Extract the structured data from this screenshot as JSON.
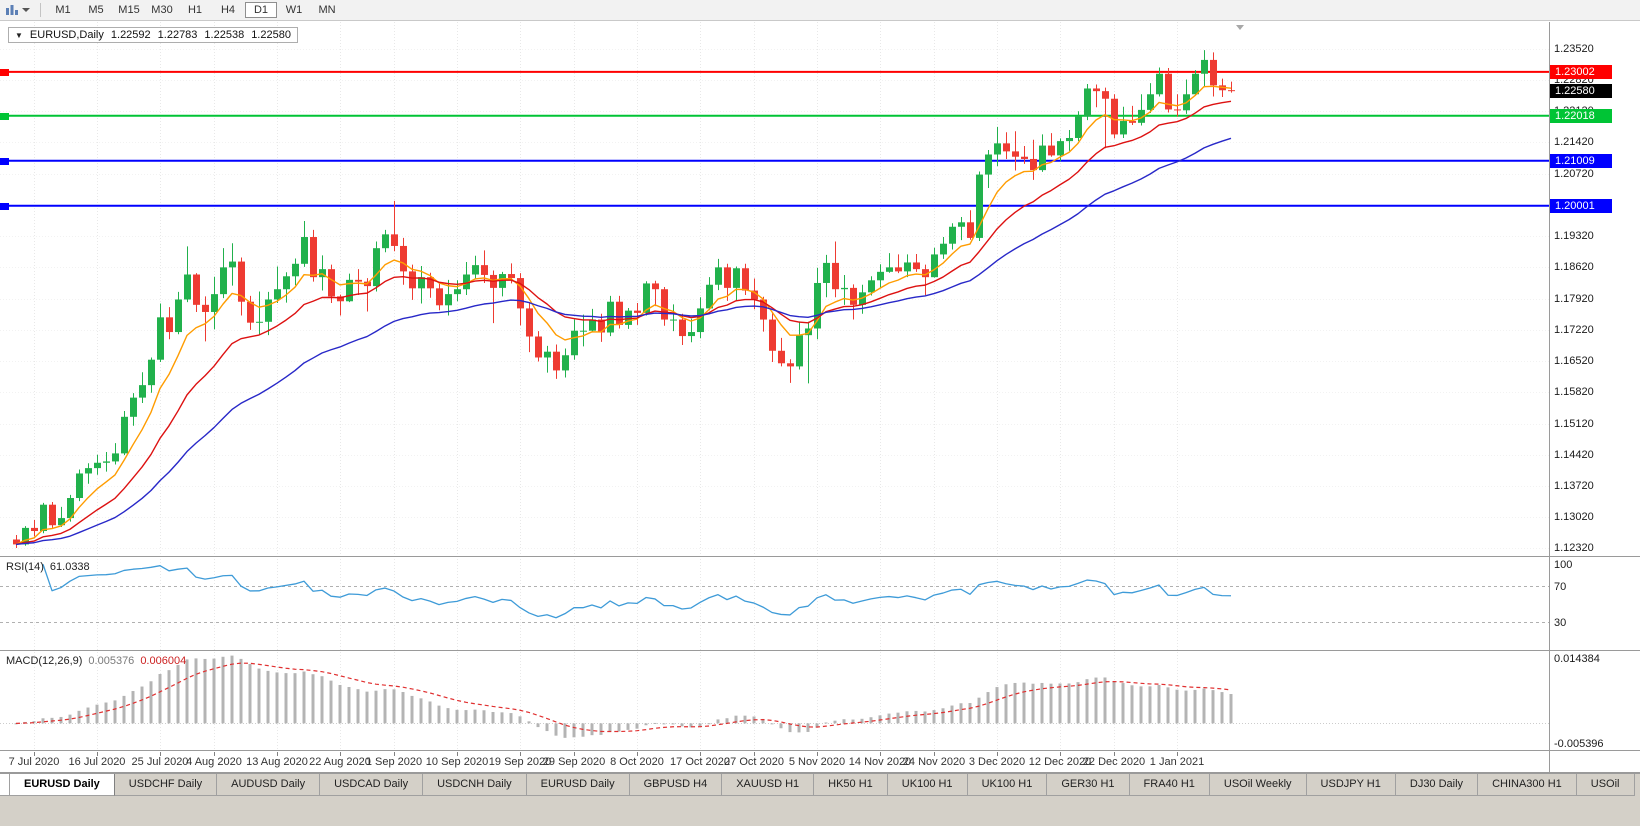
{
  "toolbar": {
    "icons": [
      {
        "name": "chart-type-icon"
      },
      {
        "name": "chevron-down-icon"
      }
    ],
    "periods": [
      "M1",
      "M5",
      "M15",
      "M30",
      "H1",
      "H4",
      "D1",
      "W1",
      "MN"
    ],
    "active_period": "D1"
  },
  "chart": {
    "collapse_arrow": "▼",
    "symbol_label": "EURUSD,Daily",
    "ohlc": {
      "open": "1.22592",
      "high": "1.22783",
      "low": "1.22538",
      "close": "1.22580"
    }
  },
  "price_axis": {
    "labels": [
      "1.23520",
      "1.22820",
      "1.22120",
      "1.21420",
      "1.20720",
      "1.20020",
      "1.19320",
      "1.18620",
      "1.17920",
      "1.17220",
      "1.16520",
      "1.15820",
      "1.15120",
      "1.14420",
      "1.13720",
      "1.13020",
      "1.12320"
    ],
    "current_price": {
      "text": "1.22580",
      "value": 1.2258,
      "bg": "#000000"
    }
  },
  "rsi": {
    "title": "RSI(14)",
    "value": "61.0338",
    "axis_labels": [
      {
        "text": "100",
        "value": 100
      },
      {
        "text": "70",
        "value": 70
      },
      {
        "text": "30",
        "value": 30
      }
    ],
    "levels": [
      70,
      30
    ]
  },
  "macd": {
    "title": "MACD(12,26,9)",
    "value_main": "0.005376",
    "value_signal": "0.006004",
    "axis_labels": [
      {
        "text": "0.014384",
        "value": 0.014384
      },
      {
        "text": "-0.005396",
        "value": -0.005396
      }
    ]
  },
  "tabs": [
    {
      "label": "EURUSD Daily",
      "active": true
    },
    {
      "label": "USDCHF Daily"
    },
    {
      "label": "AUDUSD Daily"
    },
    {
      "label": "USDCAD Daily"
    },
    {
      "label": "USDCNH Daily"
    },
    {
      "label": "EURUSD Daily"
    },
    {
      "label": "GBPUSD H4"
    },
    {
      "label": "XAUUSD H1"
    },
    {
      "label": "HK50 H1"
    },
    {
      "label": "UK100 H1"
    },
    {
      "label": "UK100 H1"
    },
    {
      "label": "GER30 H1"
    },
    {
      "label": "FRA40 H1"
    },
    {
      "label": "USOil Weekly"
    },
    {
      "label": "USDJPY H1"
    },
    {
      "label": "DJ30 Daily"
    },
    {
      "label": "CHINA300 H1"
    },
    {
      "label": "USOil"
    }
  ],
  "chart_data": {
    "type": "candlestick",
    "symbol": "EURUSD",
    "timeframe": "Daily",
    "y_range": [
      1.1215,
      1.2412
    ],
    "time_axis": {
      "labels": [
        "7 Jul 2020",
        "16 Jul 2020",
        "25 Jul 2020",
        "4 Aug 2020",
        "13 Aug 2020",
        "22 Aug 2020",
        "1 Sep 2020",
        "10 Sep 2020",
        "19 Sep 2020",
        "29 Sep 2020",
        "8 Oct 2020",
        "17 Oct 2020",
        "27 Oct 2020",
        "5 Nov 2020",
        "14 Nov 2020",
        "24 Nov 2020",
        "3 Dec 2020",
        "12 Dec 2020",
        "22 Dec 2020",
        "1 Jan 2021"
      ],
      "tick_indices": [
        2,
        9,
        16,
        22,
        29,
        36,
        42,
        49,
        56,
        62,
        69,
        76,
        82,
        89,
        96,
        102,
        109,
        116,
        122,
        129
      ]
    },
    "candles": [
      [
        1.1252,
        1.1262,
        1.1233,
        1.1241
      ],
      [
        1.1241,
        1.1282,
        1.1238,
        1.1278
      ],
      [
        1.1278,
        1.1296,
        1.1259,
        1.1271
      ],
      [
        1.1271,
        1.1334,
        1.1266,
        1.133
      ],
      [
        1.133,
        1.1336,
        1.1278,
        1.1284
      ],
      [
        1.1284,
        1.1325,
        1.128,
        1.13
      ],
      [
        1.13,
        1.1352,
        1.1292,
        1.1345
      ],
      [
        1.1345,
        1.1409,
        1.1338,
        1.14
      ],
      [
        1.14,
        1.1423,
        1.1377,
        1.1412
      ],
      [
        1.1412,
        1.1442,
        1.1397,
        1.1424
      ],
      [
        1.1424,
        1.1448,
        1.1404,
        1.1427
      ],
      [
        1.1427,
        1.1468,
        1.142,
        1.1445
      ],
      [
        1.1445,
        1.154,
        1.1441,
        1.1527
      ],
      [
        1.1527,
        1.158,
        1.1507,
        1.157
      ],
      [
        1.157,
        1.1627,
        1.1558,
        1.1598
      ],
      [
        1.1598,
        1.166,
        1.1581,
        1.1655
      ],
      [
        1.1655,
        1.1781,
        1.165,
        1.175
      ],
      [
        1.175,
        1.1773,
        1.1701,
        1.1717
      ],
      [
        1.1717,
        1.1807,
        1.1712,
        1.179
      ],
      [
        1.179,
        1.1909,
        1.1784,
        1.1846
      ],
      [
        1.1846,
        1.1849,
        1.1762,
        1.1778
      ],
      [
        1.1778,
        1.1797,
        1.1696,
        1.1762
      ],
      [
        1.1762,
        1.1841,
        1.1723,
        1.1802
      ],
      [
        1.1802,
        1.1905,
        1.1793,
        1.1862
      ],
      [
        1.1862,
        1.1916,
        1.1821,
        1.1875
      ],
      [
        1.1875,
        1.1884,
        1.1754,
        1.1785
      ],
      [
        1.1785,
        1.1798,
        1.1722,
        1.1738
      ],
      [
        1.1738,
        1.1808,
        1.1711,
        1.174
      ],
      [
        1.174,
        1.1807,
        1.171,
        1.179
      ],
      [
        1.179,
        1.1864,
        1.1782,
        1.1813
      ],
      [
        1.1813,
        1.1851,
        1.1783,
        1.1842
      ],
      [
        1.1842,
        1.1882,
        1.1822,
        1.187
      ],
      [
        1.187,
        1.1966,
        1.1863,
        1.193
      ],
      [
        1.193,
        1.1946,
        1.183,
        1.184
      ],
      [
        1.184,
        1.1889,
        1.181,
        1.1858
      ],
      [
        1.1858,
        1.1868,
        1.1782,
        1.1797
      ],
      [
        1.1797,
        1.1801,
        1.1754,
        1.1786
      ],
      [
        1.1786,
        1.1848,
        1.1784,
        1.1834
      ],
      [
        1.1834,
        1.1858,
        1.18,
        1.183
      ],
      [
        1.183,
        1.1838,
        1.1763,
        1.182
      ],
      [
        1.182,
        1.192,
        1.1808,
        1.1905
      ],
      [
        1.1905,
        1.1946,
        1.1896,
        1.1936
      ],
      [
        1.1936,
        1.2011,
        1.1898,
        1.191
      ],
      [
        1.191,
        1.1928,
        1.1823,
        1.1853
      ],
      [
        1.1853,
        1.1868,
        1.1789,
        1.1815
      ],
      [
        1.1815,
        1.1865,
        1.1781,
        1.184
      ],
      [
        1.184,
        1.185,
        1.1794,
        1.1815
      ],
      [
        1.1815,
        1.1828,
        1.1766,
        1.1777
      ],
      [
        1.1777,
        1.1834,
        1.1754,
        1.1802
      ],
      [
        1.1802,
        1.1833,
        1.1786,
        1.1813
      ],
      [
        1.1813,
        1.1874,
        1.18,
        1.1846
      ],
      [
        1.1846,
        1.1888,
        1.1835,
        1.1867
      ],
      [
        1.1867,
        1.19,
        1.1827,
        1.1845
      ],
      [
        1.1845,
        1.1855,
        1.1737,
        1.1816
      ],
      [
        1.1816,
        1.1852,
        1.1797,
        1.1847
      ],
      [
        1.1847,
        1.1871,
        1.1826,
        1.1838
      ],
      [
        1.1838,
        1.1849,
        1.1732,
        1.177
      ],
      [
        1.177,
        1.1784,
        1.1672,
        1.1707
      ],
      [
        1.1707,
        1.1719,
        1.1651,
        1.166
      ],
      [
        1.166,
        1.1686,
        1.1626,
        1.1673
      ],
      [
        1.1673,
        1.1689,
        1.1612,
        1.1631
      ],
      [
        1.1631,
        1.168,
        1.1615,
        1.1665
      ],
      [
        1.1665,
        1.1745,
        1.1655,
        1.172
      ],
      [
        1.172,
        1.1756,
        1.1685,
        1.172
      ],
      [
        1.172,
        1.1769,
        1.1717,
        1.1745
      ],
      [
        1.1745,
        1.1758,
        1.1695,
        1.1716
      ],
      [
        1.1716,
        1.1798,
        1.1708,
        1.1785
      ],
      [
        1.1785,
        1.1798,
        1.1725,
        1.1733
      ],
      [
        1.1733,
        1.1771,
        1.1724,
        1.1765
      ],
      [
        1.1765,
        1.1782,
        1.1733,
        1.176
      ],
      [
        1.176,
        1.1831,
        1.1754,
        1.1826
      ],
      [
        1.1826,
        1.1832,
        1.1775,
        1.1813
      ],
      [
        1.1813,
        1.1818,
        1.1731,
        1.1745
      ],
      [
        1.1745,
        1.1779,
        1.1719,
        1.1745
      ],
      [
        1.1745,
        1.1758,
        1.1688,
        1.1708
      ],
      [
        1.1708,
        1.1747,
        1.1694,
        1.1717
      ],
      [
        1.1717,
        1.1795,
        1.1703,
        1.177
      ],
      [
        1.177,
        1.184,
        1.1766,
        1.1823
      ],
      [
        1.1823,
        1.1881,
        1.1811,
        1.1862
      ],
      [
        1.1862,
        1.187,
        1.1787,
        1.1816
      ],
      [
        1.1816,
        1.1864,
        1.1786,
        1.186
      ],
      [
        1.186,
        1.187,
        1.18,
        1.181
      ],
      [
        1.181,
        1.1837,
        1.1768,
        1.179
      ],
      [
        1.179,
        1.1796,
        1.1718,
        1.1745
      ],
      [
        1.1745,
        1.1759,
        1.165,
        1.1675
      ],
      [
        1.1675,
        1.1704,
        1.164,
        1.1647
      ],
      [
        1.1647,
        1.1656,
        1.1603,
        1.164
      ],
      [
        1.164,
        1.1741,
        1.1633,
        1.171
      ],
      [
        1.171,
        1.174,
        1.1602,
        1.1725
      ],
      [
        1.1725,
        1.1861,
        1.1701,
        1.1827
      ],
      [
        1.1827,
        1.189,
        1.1795,
        1.1872
      ],
      [
        1.1872,
        1.192,
        1.1795,
        1.1813
      ],
      [
        1.1813,
        1.1845,
        1.1778,
        1.1816
      ],
      [
        1.1816,
        1.1824,
        1.1745,
        1.1778
      ],
      [
        1.1778,
        1.1823,
        1.1758,
        1.1806
      ],
      [
        1.1806,
        1.1842,
        1.1799,
        1.1833
      ],
      [
        1.1833,
        1.1869,
        1.1815,
        1.1852
      ],
      [
        1.1852,
        1.1894,
        1.185,
        1.1862
      ],
      [
        1.1862,
        1.1891,
        1.1849,
        1.1853
      ],
      [
        1.1853,
        1.1891,
        1.184,
        1.1873
      ],
      [
        1.1873,
        1.1892,
        1.1852,
        1.1858
      ],
      [
        1.1858,
        1.1868,
        1.18,
        1.184
      ],
      [
        1.184,
        1.1906,
        1.1839,
        1.1891
      ],
      [
        1.1891,
        1.193,
        1.1881,
        1.1915
      ],
      [
        1.1915,
        1.1961,
        1.1902,
        1.1953
      ],
      [
        1.1953,
        1.1975,
        1.1923,
        1.1963
      ],
      [
        1.1963,
        1.199,
        1.1924,
        1.1928
      ],
      [
        1.1928,
        1.2077,
        1.1921,
        1.207
      ],
      [
        1.207,
        1.2125,
        1.204,
        1.2115
      ],
      [
        1.2115,
        1.2177,
        1.2089,
        1.214
      ],
      [
        1.214,
        1.2165,
        1.2105,
        1.2122
      ],
      [
        1.2122,
        1.2167,
        1.2079,
        1.211
      ],
      [
        1.211,
        1.2134,
        1.2094,
        1.2105
      ],
      [
        1.2105,
        1.2148,
        1.2058,
        1.208
      ],
      [
        1.208,
        1.216,
        1.2076,
        1.2135
      ],
      [
        1.2135,
        1.2163,
        1.211,
        1.2113
      ],
      [
        1.2113,
        1.2151,
        1.21,
        1.2145
      ],
      [
        1.2145,
        1.217,
        1.2123,
        1.2152
      ],
      [
        1.2152,
        1.2212,
        1.2145,
        1.22
      ],
      [
        1.22,
        1.2273,
        1.2192,
        1.2263
      ],
      [
        1.2263,
        1.2272,
        1.2221,
        1.2257
      ],
      [
        1.2257,
        1.2265,
        1.2129,
        1.224
      ],
      [
        1.224,
        1.225,
        1.2151,
        1.216
      ],
      [
        1.216,
        1.2222,
        1.2152,
        1.219
      ],
      [
        1.219,
        1.2224,
        1.2181,
        1.2186
      ],
      [
        1.2186,
        1.225,
        1.218,
        1.2215
      ],
      [
        1.2215,
        1.2275,
        1.2208,
        1.225
      ],
      [
        1.225,
        1.231,
        1.2245,
        1.2296
      ],
      [
        1.2296,
        1.2309,
        1.2209,
        1.2216
      ],
      [
        1.2216,
        1.225,
        1.22,
        1.2214
      ],
      [
        1.2214,
        1.2283,
        1.2206,
        1.225
      ],
      [
        1.225,
        1.2304,
        1.2247,
        1.2296
      ],
      [
        1.2296,
        1.2349,
        1.2266,
        1.2327
      ],
      [
        1.2327,
        1.2344,
        1.2245,
        1.227
      ],
      [
        1.227,
        1.2285,
        1.2244,
        1.2259
      ],
      [
        1.22592,
        1.22783,
        1.22538,
        1.2258
      ]
    ],
    "lines": [
      {
        "price": 1.23002,
        "label": "1.23002",
        "color": "#ff0000"
      },
      {
        "price": 1.22018,
        "label": "1.22018",
        "color": "#00c435"
      },
      {
        "price": 1.21009,
        "label": "1.21009",
        "color": "#0000ff"
      },
      {
        "price": 1.20001,
        "label": "1.20001",
        "color": "#0000ff"
      }
    ],
    "moving_averages": [
      {
        "period": 7,
        "color": "#ff9c00"
      },
      {
        "period": 16,
        "color": "#dd1111"
      },
      {
        "period": 34,
        "color": "#2828c8"
      }
    ],
    "rsi_period": 14,
    "macd_params": [
      12,
      26,
      9
    ],
    "macd_range": [
      -0.0056,
      0.015
    ],
    "colors": {
      "bull": "#21b14c",
      "bear": "#ee3b32",
      "rsi_line": "#3e9bd8",
      "macd_hist": "#b4b4b4",
      "macd_signal": "#e03030",
      "grid": "#e8e8e8"
    }
  }
}
